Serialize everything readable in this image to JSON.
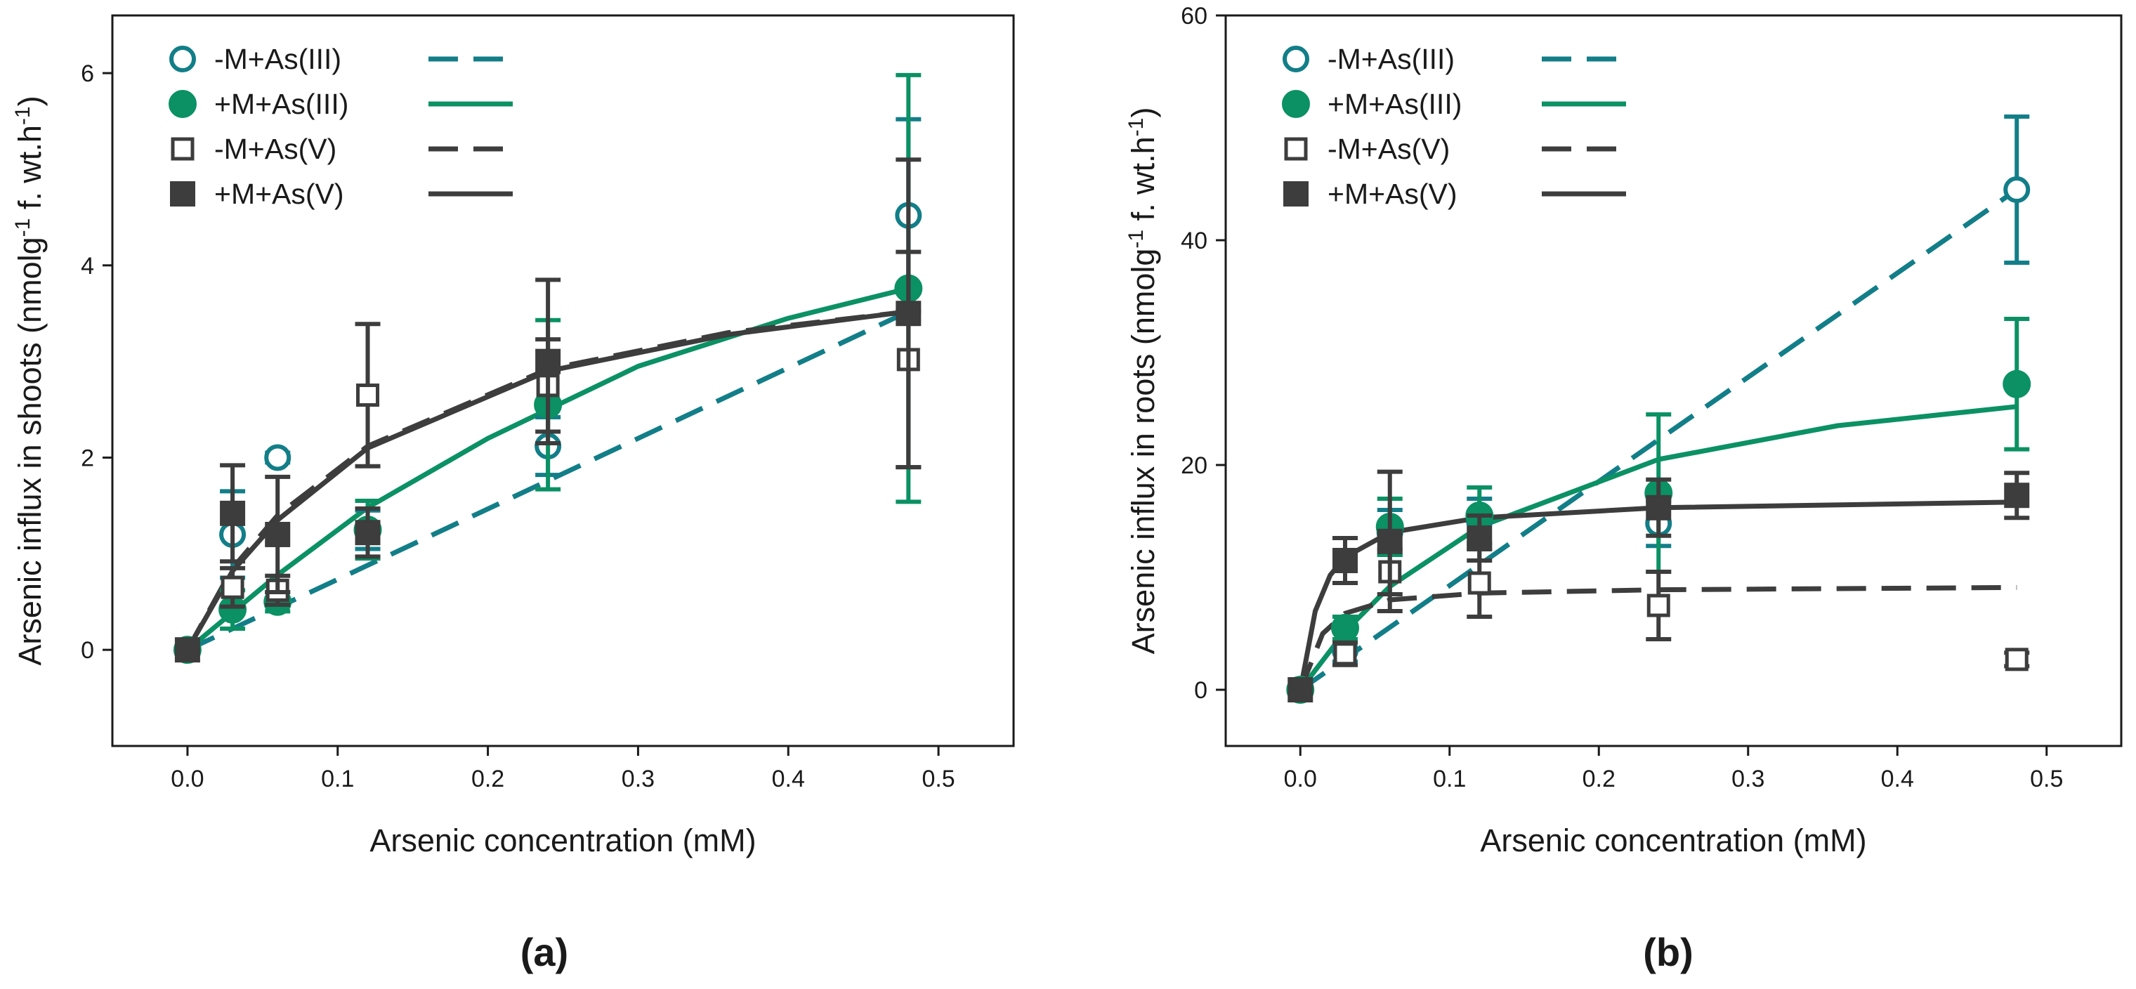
{
  "chart_data": [
    {
      "type": "scatter",
      "panel_label": "(a)",
      "xlabel": "Arsenic concentration (mM)",
      "ylabel": {
        "main": "Arsenic influx in shoots (nmolg",
        "sup1": "-1",
        "mid": " f. wt.h",
        "sup2": "-1",
        "end": ")"
      },
      "xlim": [
        -0.05,
        0.55
      ],
      "ylim": [
        -1,
        6.6
      ],
      "xticks": [
        0.0,
        0.1,
        0.2,
        0.3,
        0.4,
        0.5
      ],
      "xtick_labels": [
        "0.0",
        "0.1",
        "0.2",
        "0.3",
        "0.4",
        "0.5"
      ],
      "yticks": [
        0,
        2,
        4,
        6
      ],
      "ytick_labels": [
        "0",
        "2",
        "4",
        "6"
      ],
      "legend_position": "top-left",
      "series": [
        {
          "name": "-M+As(III)",
          "marker": "open-circle",
          "line": "dashed",
          "color": "#127e88",
          "x": [
            0,
            0.03,
            0.06,
            0.12,
            0.24,
            0.48
          ],
          "y": [
            0,
            1.2,
            2.0,
            1.25,
            2.12,
            4.52
          ],
          "err": [
            0,
            0.45,
            0.05,
            0.2,
            0.3,
            1.0
          ],
          "fit": [
            [
              0,
              0
            ],
            [
              0.48,
              3.52
            ]
          ]
        },
        {
          "name": "+M+As(III)",
          "marker": "filled-circle",
          "line": "solid",
          "color": "#0b9163",
          "x": [
            0,
            0.03,
            0.06,
            0.12,
            0.24,
            0.48
          ],
          "y": [
            0,
            0.42,
            0.5,
            1.25,
            2.55,
            3.76
          ],
          "err": [
            0,
            0.2,
            0.1,
            0.3,
            0.88,
            2.22
          ],
          "fit": [
            [
              0,
              0
            ],
            [
              0.06,
              0.78
            ],
            [
              0.12,
              1.48
            ],
            [
              0.2,
              2.2
            ],
            [
              0.3,
              2.95
            ],
            [
              0.4,
              3.45
            ],
            [
              0.48,
              3.76
            ]
          ]
        },
        {
          "name": "-M+As(V)",
          "marker": "open-square",
          "line": "dashed",
          "color": "#3d3d3d",
          "x": [
            0,
            0.03,
            0.06,
            0.12,
            0.24,
            0.48
          ],
          "y": [
            0,
            0.65,
            0.62,
            2.65,
            2.75,
            3.02
          ],
          "err": [
            0,
            0.2,
            0.15,
            0.74,
            0.48,
            1.12
          ],
          "fit": [
            [
              0,
              0
            ],
            [
              0.03,
              0.85
            ],
            [
              0.06,
              1.4
            ],
            [
              0.12,
              2.12
            ],
            [
              0.24,
              2.92
            ],
            [
              0.36,
              3.3
            ],
            [
              0.48,
              3.52
            ]
          ]
        },
        {
          "name": "+M+As(V)",
          "marker": "filled-square",
          "line": "solid",
          "color": "#3d3d3d",
          "x": [
            0,
            0.03,
            0.06,
            0.12,
            0.24,
            0.48
          ],
          "y": [
            0,
            1.42,
            1.2,
            1.22,
            3.0,
            3.5
          ],
          "err": [
            0,
            0.5,
            0.6,
            0.25,
            0.85,
            1.6
          ],
          "fit": [
            [
              0,
              0
            ],
            [
              0.03,
              0.82
            ],
            [
              0.06,
              1.35
            ],
            [
              0.12,
              2.1
            ],
            [
              0.24,
              2.9
            ],
            [
              0.36,
              3.28
            ],
            [
              0.48,
              3.52
            ]
          ]
        }
      ]
    },
    {
      "type": "scatter",
      "panel_label": "(b)",
      "xlabel": "Arsenic concentration (mM)",
      "ylabel": {
        "main": "Arsenic influx in roots (nmolg",
        "sup1": "-1",
        "mid": " f. wt.h",
        "sup2": "-1",
        "end": ")"
      },
      "xlim": [
        -0.05,
        0.55
      ],
      "ylim": [
        -5,
        60
      ],
      "xticks": [
        0.0,
        0.1,
        0.2,
        0.3,
        0.4,
        0.5
      ],
      "xtick_labels": [
        "0.0",
        "0.1",
        "0.2",
        "0.3",
        "0.4",
        "0.5"
      ],
      "yticks": [
        0,
        20,
        40,
        60
      ],
      "ytick_labels": [
        "0",
        "20",
        "40",
        "60"
      ],
      "legend_position": "top-left",
      "series": [
        {
          "name": "-M+As(III)",
          "marker": "open-circle",
          "line": "dashed",
          "color": "#127e88",
          "x": [
            0,
            0.03,
            0.06,
            0.12,
            0.24,
            0.48
          ],
          "y": [
            0,
            3.5,
            14,
            15,
            14.8,
            44.5
          ],
          "err": [
            0,
            1.0,
            2.0,
            2.0,
            2.0,
            6.5
          ],
          "fit": [
            [
              0,
              0
            ],
            [
              0.48,
              44.5
            ]
          ]
        },
        {
          "name": "+M+As(III)",
          "marker": "filled-circle",
          "line": "solid",
          "color": "#0b9163",
          "x": [
            0,
            0.03,
            0.06,
            0.12,
            0.24,
            0.48
          ],
          "y": [
            0,
            5.5,
            14.5,
            15.5,
            17.5,
            27.2
          ],
          "err": [
            0,
            1.0,
            2.5,
            2.5,
            7.0,
            5.8
          ],
          "fit": [
            [
              0,
              0
            ],
            [
              0.03,
              5.2
            ],
            [
              0.06,
              9.2
            ],
            [
              0.12,
              14.5
            ],
            [
              0.24,
              20.5
            ],
            [
              0.36,
              23.5
            ],
            [
              0.48,
              25.2
            ]
          ]
        },
        {
          "name": "-M+As(V)",
          "marker": "open-square",
          "line": "dashed",
          "color": "#3d3d3d",
          "x": [
            0,
            0.03,
            0.06,
            0.12,
            0.24,
            0.48
          ],
          "y": [
            0,
            3.2,
            10.5,
            9.5,
            7.5,
            2.7
          ],
          "err": [
            0,
            1.0,
            2.0,
            3.0,
            3.0,
            0.6
          ],
          "fit": [
            [
              0,
              0
            ],
            [
              0.015,
              5
            ],
            [
              0.03,
              6.8
            ],
            [
              0.06,
              8.0
            ],
            [
              0.12,
              8.6
            ],
            [
              0.24,
              8.9
            ],
            [
              0.48,
              9.1
            ]
          ]
        },
        {
          "name": "+M+As(V)",
          "marker": "filled-square",
          "line": "solid",
          "color": "#3d3d3d",
          "x": [
            0,
            0.03,
            0.06,
            0.12,
            0.24,
            0.48
          ],
          "y": [
            0,
            11.5,
            13.2,
            13.5,
            16.2,
            17.3
          ],
          "err": [
            0,
            2.0,
            6.2,
            2.0,
            2.5,
            2.0
          ],
          "fit": [
            [
              0,
              0
            ],
            [
              0.01,
              7
            ],
            [
              0.02,
              10.2
            ],
            [
              0.03,
              11.8
            ],
            [
              0.06,
              14.0
            ],
            [
              0.12,
              15.3
            ],
            [
              0.24,
              16.2
            ],
            [
              0.48,
              16.7
            ]
          ]
        }
      ]
    }
  ]
}
